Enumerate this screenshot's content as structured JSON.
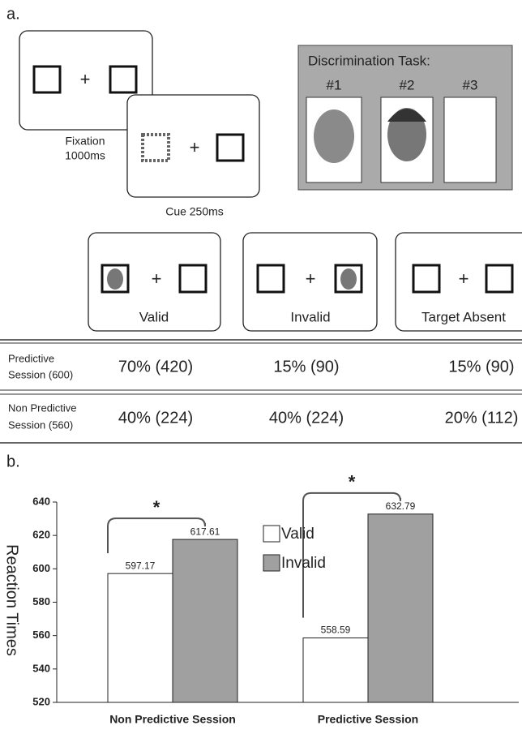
{
  "panel_a": {
    "label": "a.",
    "fixation": [
      "Fixation",
      "1000ms"
    ],
    "cue": "Cue 250ms",
    "task_title": "Discrimination Task:",
    "task_items": [
      "#1",
      "#2",
      "#3"
    ],
    "conditions": [
      "Valid",
      "Invalid",
      "Target Absent"
    ],
    "table": {
      "rows": [
        {
          "label": [
            "Predictive",
            "Session (600)"
          ],
          "cells": [
            "70% (420)",
            "15% (90)",
            "15% (90)"
          ]
        },
        {
          "label": [
            "Non Predictive",
            "Session (560)"
          ],
          "cells": [
            "40% (224)",
            "40% (224)",
            "20% (112)"
          ]
        }
      ]
    }
  },
  "panel_b_label": "b.",
  "chart_data": {
    "type": "bar",
    "y_label": "Reaction Times",
    "categories": [
      "Non Predictive Session",
      "Predictive Session"
    ],
    "series": [
      {
        "name": "Valid",
        "color": "#ffffff",
        "values": [
          597.17,
          558.59
        ]
      },
      {
        "name": "Invalid",
        "color": "#a0a0a0",
        "values": [
          617.61,
          632.79
        ]
      }
    ],
    "ylim": [
      520,
      640
    ],
    "yticks": [
      520,
      540,
      560,
      580,
      600,
      620,
      640
    ],
    "annotations": [
      "*",
      "*"
    ],
    "legend": "top"
  }
}
